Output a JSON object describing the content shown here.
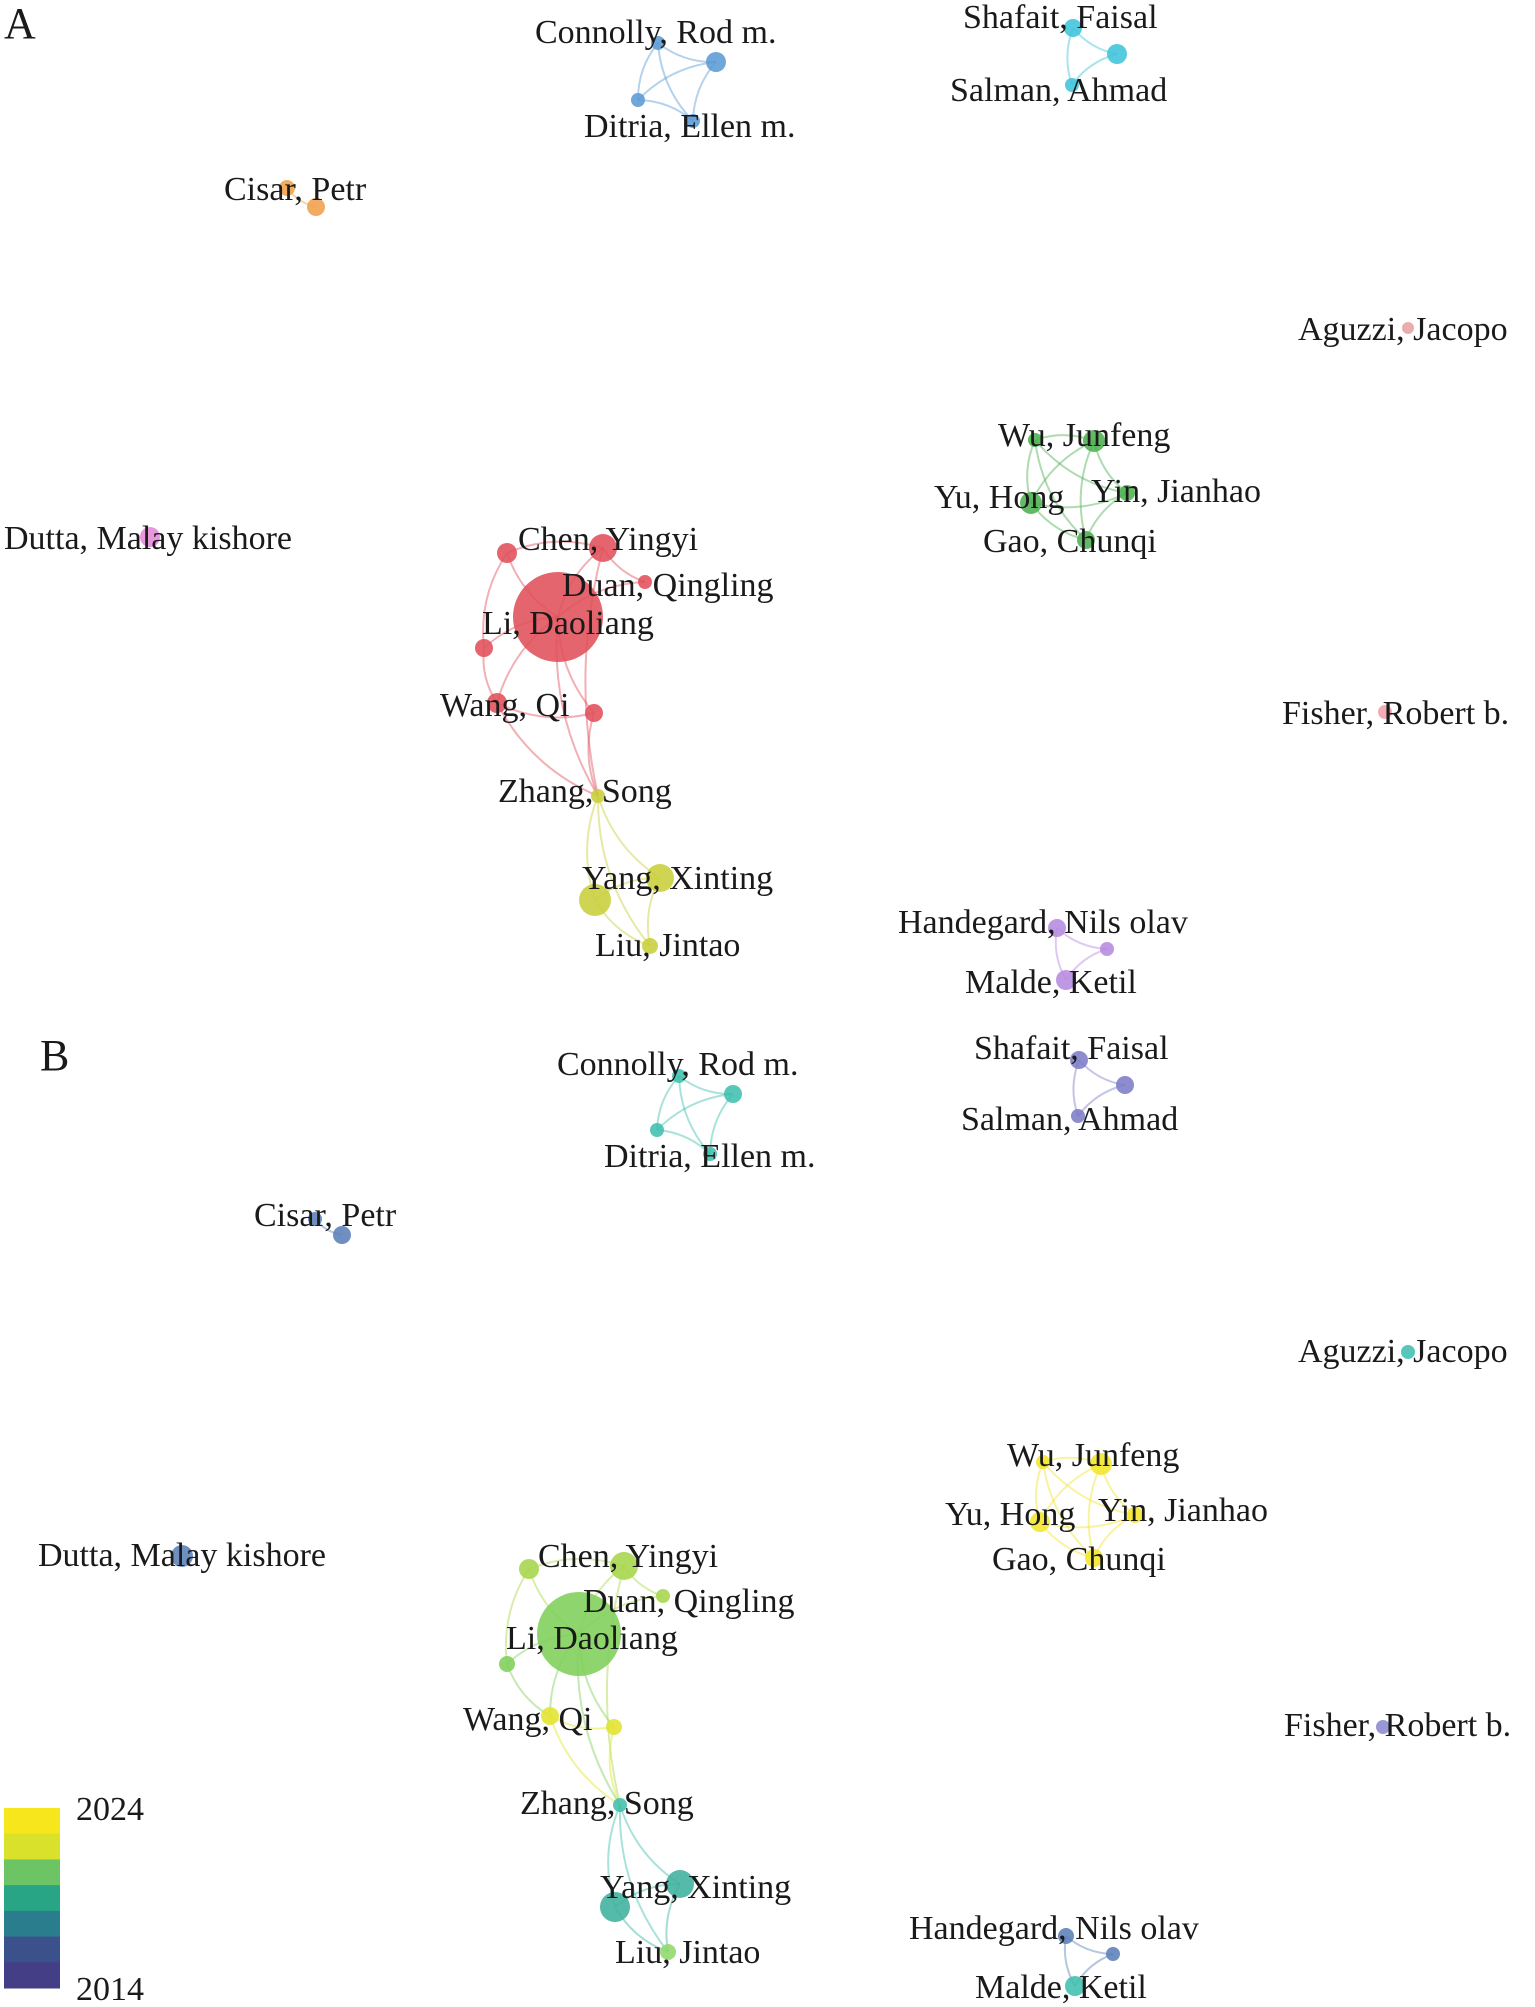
{
  "panels": [
    {
      "letter": "A",
      "nodes": [
        {
          "id": "connolly",
          "label": "Connolly, Rod m.",
          "color": "#5b9bd5"
        },
        {
          "id": "ditria",
          "label": "Ditria, Ellen m.",
          "color": "#5b9bd5"
        },
        {
          "id": "shafait",
          "label": "Shafait, Faisal",
          "color": "#3fc3d9"
        },
        {
          "id": "salman",
          "label": "Salman, Ahmad",
          "color": "#3fc3d9"
        },
        {
          "id": "cisar",
          "label": "Cisar, Petr",
          "color": "#f0a04b"
        },
        {
          "id": "aguzzi",
          "label": "Aguzzi, Jacopo",
          "color": "#e8a0a0"
        },
        {
          "id": "wu",
          "label": "Wu, Junfeng",
          "color": "#4cb050"
        },
        {
          "id": "yu",
          "label": "Yu, Hong",
          "color": "#4cb050"
        },
        {
          "id": "yin",
          "label": "Yin, Jianhao",
          "color": "#4cb050"
        },
        {
          "id": "gao",
          "label": "Gao, Chunqi",
          "color": "#4cb050"
        },
        {
          "id": "dutta",
          "label": "Dutta, Malay kishore",
          "color": "#e48ad8"
        },
        {
          "id": "chen",
          "label": "Chen, Yingyi",
          "color": "#e0505a"
        },
        {
          "id": "duan",
          "label": "Duan, Qingling",
          "color": "#e0505a"
        },
        {
          "id": "li",
          "label": "Li, Daoliang",
          "color": "#e0505a"
        },
        {
          "id": "wang",
          "label": "Wang, Qi",
          "color": "#e0505a"
        },
        {
          "id": "fisher",
          "label": "Fisher, Robert b.",
          "color": "#f0a0a8"
        },
        {
          "id": "zhang",
          "label": "Zhang, Song",
          "color": "#c8cf3a"
        },
        {
          "id": "yang",
          "label": "Yang, Xinting",
          "color": "#c8cf3a"
        },
        {
          "id": "liu",
          "label": "Liu, Jintao",
          "color": "#c8cf3a"
        },
        {
          "id": "handegard",
          "label": "Handegard, Nils olav",
          "color": "#b68ae0"
        },
        {
          "id": "malde",
          "label": "Malde, Ketil",
          "color": "#b68ae0"
        }
      ]
    },
    {
      "letter": "B",
      "nodes": [
        {
          "id": "connolly",
          "label": "Connolly, Rod m.",
          "color": "#3fbfae"
        },
        {
          "id": "ditria",
          "label": "Ditria, Ellen m.",
          "color": "#3fbfae"
        },
        {
          "id": "shafait",
          "label": "Shafait, Faisal",
          "color": "#7c7cc8"
        },
        {
          "id": "salman",
          "label": "Salman, Ahmad",
          "color": "#7c7cc8"
        },
        {
          "id": "cisar",
          "label": "Cisar, Petr",
          "color": "#5b80b8"
        },
        {
          "id": "aguzzi",
          "label": "Aguzzi, Jacopo",
          "color": "#3fbfae"
        },
        {
          "id": "wu",
          "label": "Wu, Junfeng",
          "color": "#f2e52a"
        },
        {
          "id": "yu",
          "label": "Yu, Hong",
          "color": "#f2e52a"
        },
        {
          "id": "yin",
          "label": "Yin, Jianhao",
          "color": "#f2e52a"
        },
        {
          "id": "gao",
          "label": "Gao, Chunqi",
          "color": "#f2e52a"
        },
        {
          "id": "dutta",
          "label": "Dutta, Malay kishore",
          "color": "#5b80b8"
        },
        {
          "id": "chen",
          "label": "Chen, Yingyi",
          "color": "#a6d64a"
        },
        {
          "id": "duan",
          "label": "Duan, Qingling",
          "color": "#a6d64a"
        },
        {
          "id": "li",
          "label": "Li, Daoliang",
          "color": "#7fcf5a"
        },
        {
          "id": "wang",
          "label": "Wang, Qi",
          "color": "#e3e22e"
        },
        {
          "id": "fisher",
          "label": "Fisher, Robert b.",
          "color": "#8a8ad0"
        },
        {
          "id": "zhang",
          "label": "Zhang, Song",
          "color": "#3fbfae"
        },
        {
          "id": "yang",
          "label": "Yang, Xinting",
          "color": "#3fb09e"
        },
        {
          "id": "liu",
          "label": "Liu, Jintao",
          "color": "#8fd86a"
        },
        {
          "id": "handegard",
          "label": "Handegard, Nils olav",
          "color": "#5b80b8"
        },
        {
          "id": "malde",
          "label": "Malde, Ketil",
          "color": "#3fbfae"
        }
      ]
    }
  ],
  "legend": {
    "max_label": "2024",
    "min_label": "2014",
    "colors": [
      "#f7e61b",
      "#d9e12b",
      "#6cc464",
      "#28a585",
      "#2a7d8c",
      "#3b518b",
      "#433e85"
    ]
  }
}
